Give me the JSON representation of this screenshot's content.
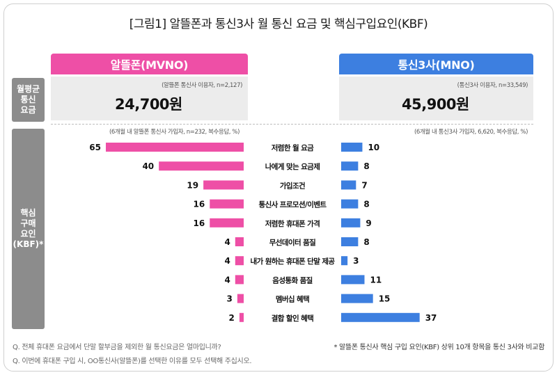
{
  "title": "[그림1] 알뜰폰과 통신3사 월 통신 요금 및 핵심구입요인(KBF)",
  "headers": {
    "mvno": "알뜰폰(MVNO)",
    "mno": "통신3사(MNO)"
  },
  "side_labels": {
    "fee": [
      "월평균",
      "통신",
      "요금"
    ],
    "kbf": [
      "핵심",
      "구매",
      "요인",
      "(KBF)*"
    ]
  },
  "fee": {
    "mvno": {
      "note": "(알뜰폰 통신사 이용자, n=2,127)",
      "value": "24,700원"
    },
    "mno": {
      "note": "(통신3사 이용자, n=33,549)",
      "value": "45,900원"
    }
  },
  "chart_notes": {
    "mvno": "(6개월 내 알뜰폰 통신사 가입자, n=232, 복수응답, %)",
    "mno": "(6개월 내 통신3사 가입자, 6,620, 복수응답, %)"
  },
  "colors": {
    "mvno": "#ee4fa6",
    "mno": "#3d7fe0",
    "side": "#8c8c8c",
    "fee_box": "#ececec"
  },
  "chart_data": {
    "type": "bar",
    "orientation": "horizontal-butterfly",
    "categories": [
      "저렴한 월 요금",
      "나에게 맞는 요금제",
      "가입조건",
      "통신사 프로모션/이벤트",
      "저렴한 휴대폰 가격",
      "무선데이터 품질",
      "내가 원하는 휴대폰 단말 제공",
      "음성통화 품질",
      "멤버십 혜택",
      "결합 할인 혜택"
    ],
    "series": [
      {
        "name": "알뜰폰(MVNO)",
        "values": [
          65,
          40,
          19,
          16,
          16,
          4,
          4,
          4,
          3,
          2
        ]
      },
      {
        "name": "통신3사(MNO)",
        "values": [
          10,
          8,
          7,
          8,
          9,
          8,
          3,
          11,
          15,
          37
        ]
      }
    ],
    "xlim": [
      0,
      65
    ]
  },
  "footnotes": {
    "q1": "Q. 전체 휴대폰 요금에서 단말 할부금을 제외한 월 통신요금은 얼마입니까?",
    "q2": "Q. 이번에 휴대폰 구입 시, OO통신사(알뜰폰)를 선택한 이유를 모두 선택해 주십시오.",
    "star": "* 알뜰폰 통신사 핵심 구입 요인(KBF) 상위 10개 항목을 통신 3사와 비교함"
  }
}
